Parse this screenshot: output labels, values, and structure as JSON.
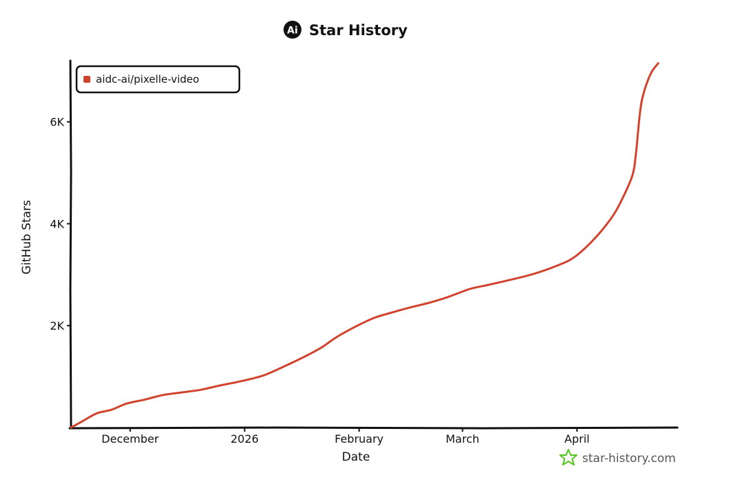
{
  "chart_data": {
    "type": "line",
    "title": "Star History",
    "xlabel": "Date",
    "ylabel": "GitHub Stars",
    "x_tick_labels": [
      {
        "label": "December",
        "date": "2025-12-01"
      },
      {
        "label": "2026",
        "date": "2026-01-01"
      },
      {
        "label": "February",
        "date": "2026-02-01"
      },
      {
        "label": "March",
        "date": "2026-03-01"
      },
      {
        "label": "April",
        "date": "2026-04-01"
      }
    ],
    "y_tick_labels": [
      {
        "label": "2K",
        "value": 2000
      },
      {
        "label": "4K",
        "value": 4000
      },
      {
        "label": "6K",
        "value": 6000
      }
    ],
    "xlim": [
      "2025-11-15",
      "2026-04-28"
    ],
    "ylim": [
      0,
      7200
    ],
    "grid": false,
    "legend_position": "top-left",
    "series": [
      {
        "name": "aidc-ai/pixelle-video",
        "color": "#d1432c",
        "points": [
          {
            "x": "2025-11-15",
            "y": 0
          },
          {
            "x": "2025-11-18",
            "y": 120
          },
          {
            "x": "2025-11-22",
            "y": 280
          },
          {
            "x": "2025-11-26",
            "y": 350
          },
          {
            "x": "2025-11-30",
            "y": 470
          },
          {
            "x": "2025-12-05",
            "y": 550
          },
          {
            "x": "2025-12-10",
            "y": 640
          },
          {
            "x": "2025-12-15",
            "y": 690
          },
          {
            "x": "2025-12-20",
            "y": 740
          },
          {
            "x": "2025-12-25",
            "y": 820
          },
          {
            "x": "2025-12-31",
            "y": 910
          },
          {
            "x": "2026-01-06",
            "y": 1020
          },
          {
            "x": "2026-01-12",
            "y": 1210
          },
          {
            "x": "2026-01-18",
            "y": 1420
          },
          {
            "x": "2026-01-22",
            "y": 1580
          },
          {
            "x": "2026-01-26",
            "y": 1780
          },
          {
            "x": "2026-01-31",
            "y": 1980
          },
          {
            "x": "2026-02-05",
            "y": 2150
          },
          {
            "x": "2026-02-10",
            "y": 2260
          },
          {
            "x": "2026-02-15",
            "y": 2360
          },
          {
            "x": "2026-02-20",
            "y": 2450
          },
          {
            "x": "2026-02-25",
            "y": 2560
          },
          {
            "x": "2026-03-03",
            "y": 2720
          },
          {
            "x": "2026-03-08",
            "y": 2800
          },
          {
            "x": "2026-03-14",
            "y": 2900
          },
          {
            "x": "2026-03-20",
            "y": 3010
          },
          {
            "x": "2026-03-26",
            "y": 3160
          },
          {
            "x": "2026-03-31",
            "y": 3330
          },
          {
            "x": "2026-04-05",
            "y": 3650
          },
          {
            "x": "2026-04-10",
            "y": 4080
          },
          {
            "x": "2026-04-13",
            "y": 4450
          },
          {
            "x": "2026-04-16",
            "y": 4950
          },
          {
            "x": "2026-04-17",
            "y": 5400
          },
          {
            "x": "2026-04-18",
            "y": 6150
          },
          {
            "x": "2026-04-19",
            "y": 6550
          },
          {
            "x": "2026-04-21",
            "y": 6950
          },
          {
            "x": "2026-04-23",
            "y": 7150
          }
        ]
      }
    ]
  },
  "watermark": {
    "text": "star-history.com",
    "icon": "star-history-logo-icon",
    "color": "#52c41a"
  },
  "title_logo": {
    "icon": "ai-logo-icon",
    "glyph": "Ai"
  }
}
